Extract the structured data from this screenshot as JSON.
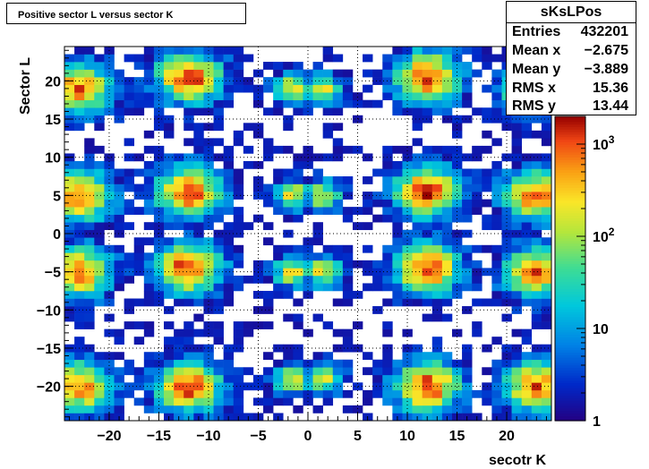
{
  "title": "Positive sector L versus sector K",
  "stats": {
    "name": "sKsLPos",
    "rows": [
      {
        "label": "Entries",
        "value": "432201"
      },
      {
        "label": "Mean x",
        "value": "−2.675"
      },
      {
        "label": "Mean y",
        "value": "−3.889"
      },
      {
        "label": "RMS x",
        "value": "15.36"
      },
      {
        "label": "RMS y",
        "value": "13.44"
      }
    ]
  },
  "chart_data": {
    "type": "heatmap",
    "xlabel": "secotr K",
    "ylabel": "Sector L",
    "xlim": [
      -24.5,
      24.5
    ],
    "ylim": [
      -24.5,
      24.5
    ],
    "x_ticks": [
      "−20",
      "−15",
      "−10",
      "−5",
      "0",
      "5",
      "10",
      "15",
      "20"
    ],
    "y_ticks": [
      "−20",
      "−15",
      "−10",
      "−5",
      "0",
      "5",
      "10",
      "15",
      "20"
    ],
    "grid": true,
    "colorbar": {
      "scale": "log",
      "range": [
        1,
        2000
      ],
      "tick_labels": [
        "1",
        "10",
        "10",
        "10"
      ],
      "tick_exponents": [
        "",
        "",
        "2",
        "3"
      ]
    },
    "blobs": [
      {
        "kx": -12,
        "ly": 20.5,
        "peak": 3.1
      },
      {
        "kx": -12,
        "ly": 5.5,
        "peak": 3.1
      },
      {
        "kx": -12,
        "ly": -4.5,
        "peak": 3.1
      },
      {
        "kx": -12,
        "ly": -20,
        "peak": 3.1
      },
      {
        "kx": 12,
        "ly": 20.5,
        "peak": 3.1
      },
      {
        "kx": 12,
        "ly": 5.5,
        "peak": 3.1
      },
      {
        "kx": 12,
        "ly": -4.5,
        "peak": 3.1
      },
      {
        "kx": 12,
        "ly": -20,
        "peak": 3.1
      },
      {
        "kx": -23,
        "ly": 19,
        "peak": 2.9
      },
      {
        "kx": -23,
        "ly": 5,
        "peak": 2.9
      },
      {
        "kx": -23,
        "ly": -5,
        "peak": 2.9
      },
      {
        "kx": -23,
        "ly": -20,
        "peak": 2.9
      },
      {
        "kx": 23,
        "ly": 19,
        "peak": 2.9
      },
      {
        "kx": 23,
        "ly": 5,
        "peak": 2.9
      },
      {
        "kx": 23,
        "ly": -5,
        "peak": 2.9
      },
      {
        "kx": 23,
        "ly": -20,
        "peak": 2.9
      },
      {
        "kx": -1.5,
        "ly": 19,
        "peak": 2.3
      },
      {
        "kx": 1.5,
        "ly": 19,
        "peak": 2.3
      },
      {
        "kx": -1.5,
        "ly": 5,
        "peak": 2.3
      },
      {
        "kx": 1.5,
        "ly": 5,
        "peak": 2.3
      },
      {
        "kx": -1.5,
        "ly": -5,
        "peak": 2.3
      },
      {
        "kx": 1.5,
        "ly": -5,
        "peak": 2.3
      },
      {
        "kx": -1.5,
        "ly": -19,
        "peak": 2.3
      },
      {
        "kx": 1.5,
        "ly": -19,
        "peak": 2.3
      }
    ]
  }
}
